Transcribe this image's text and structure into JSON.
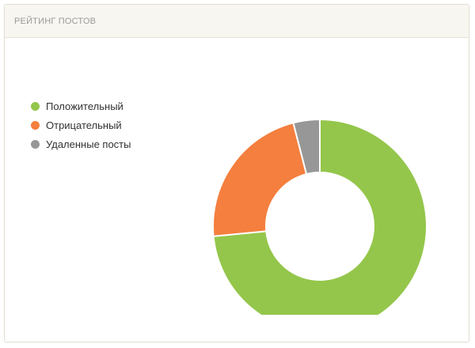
{
  "panel": {
    "title": "РЕЙТИНГ ПОСТОВ"
  },
  "colors": {
    "positive": "#94c64b",
    "negative": "#f47f3e",
    "deleted": "#979797"
  },
  "chart_data": {
    "type": "pie",
    "variant": "donut",
    "title": "РЕЙТИНГ ПОСТОВ",
    "legend_position": "left",
    "series": [
      {
        "name": "Положительный",
        "value": 73.5,
        "color": "#94c64b"
      },
      {
        "name": "Отрицательный",
        "value": 22.5,
        "color": "#f47f3e"
      },
      {
        "name": "Удаленные посты",
        "value": 4,
        "color": "#979797"
      }
    ]
  }
}
